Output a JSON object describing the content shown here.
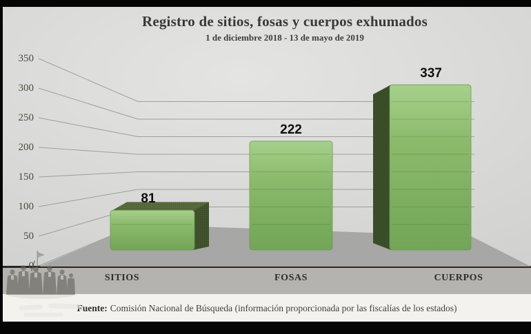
{
  "title": "Registro de sitios, fosas y cuerpos exhumados",
  "subtitle": "1 de diciembre 2018 - 13 de mayo de 2019",
  "source": {
    "label": "Fuente:",
    "text": "Comisión Nacional de Búsqueda (información proporcionada por las fiscalías de los estados)"
  },
  "chart_data": {
    "type": "bar",
    "style": "3d-perspective-column",
    "title": "Registro de sitios, fosas y cuerpos exhumados",
    "subtitle": "1 de diciembre 2018 - 13 de mayo de 2019",
    "categories": [
      "SITIOS",
      "FOSAS",
      "CUERPOS"
    ],
    "values": [
      81,
      222,
      337
    ],
    "ylim": [
      0,
      350
    ],
    "yticks": [
      0,
      50,
      100,
      150,
      200,
      250,
      300,
      350
    ],
    "grid": true,
    "legend": "none",
    "colors": {
      "bar_front": "#8bba6b",
      "bar_front_light": "#a6d08b",
      "bar_front_deep": "#72a556",
      "bar_side_dark": "#3f522c",
      "bar_top_face": "#5a6b3d",
      "floor": "#a7a7a5",
      "wall": "#d8d8d6",
      "gridline": "#94948c",
      "value_label": "#0f0f0f"
    }
  }
}
